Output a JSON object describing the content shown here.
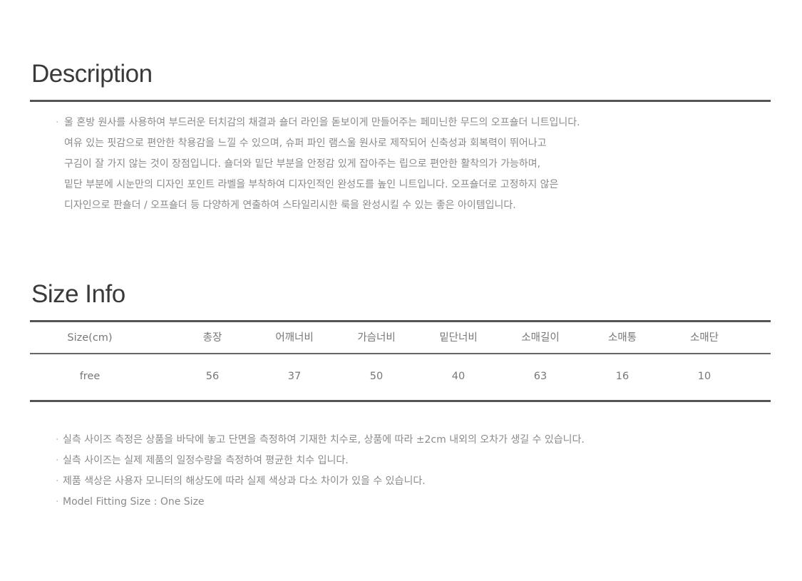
{
  "description": {
    "title": "Description",
    "lines": [
      "울 혼방 원사를 사용하여 부드러운 터치감의 채결과 숄더 라인을 돋보이게 만들어주는 페미닌한 무드의 오프숄더 니트입니다.",
      "여유 있는 핏감으로 편안한 착용감을 느낄 수 있으며, 슈퍼 파인 램스울 원사로 제작되어 신축성과 회복력이 뛰어나고",
      "구김이 잘 가지 않는 것이 장점입니다. 숄더와 밑단 부분을 안정감 있게 잡아주는 립으로 편안한 활착의가 가능하며,",
      "밑단 부분에 시눈만의 디자인 포인트 라벨을 부착하여 디자인적인 완성도를 높인 니트입니다. 오프숄더로 고정하지 않은",
      "디자인으로 판숄더 / 오프숄더 등 다양하게 연출하여 스타일리시한 룩을 완성시킬 수 있는 좋은 아이템입니다."
    ]
  },
  "size_info": {
    "title": "Size Info",
    "headers": [
      "Size(cm)",
      "총장",
      "어깨너비",
      "가슴너비",
      "밑단너비",
      "소매길이",
      "소매통",
      "소매단"
    ],
    "rows": [
      [
        "free",
        "56",
        "37",
        "50",
        "40",
        "63",
        "16",
        "10"
      ]
    ]
  },
  "notes": [
    "실측 사이즈 측정은 상품을 바닥에 놓고 단면을 측정하여 기재한 치수로, 상품에 따라 ±2cm 내외의 오차가 생길 수 있습니다.",
    "실측 사이즈는 실제 제품의 일정수량을 측정하여 평균한 치수 입니다.",
    "제품 색상은 사용자 모니터의 해상도에 따라 실제 색상과 다소 차이가 있을 수 있습니다.",
    "Model Fitting Size : One Size"
  ]
}
